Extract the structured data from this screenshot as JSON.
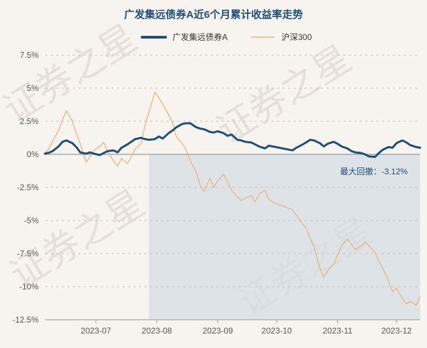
{
  "watermark": "证券之星",
  "chart_data": {
    "type": "line",
    "title": "广发集远债券A近6个月累计收益率走势",
    "xlabel": "",
    "ylabel": "",
    "ylim": [
      -12.5,
      7.5
    ],
    "yticks": [
      7.5,
      5,
      2.5,
      0,
      -2.5,
      -5,
      -7.5,
      -10,
      -12.5
    ],
    "ytick_labels": [
      "7.5%",
      "5%",
      "2.5%",
      "0%",
      "-2.5%",
      "-5%",
      "-7.5%",
      "-10%",
      "-12.5%"
    ],
    "xrange": [
      "2023-06-05",
      "2023-12-13"
    ],
    "xticks": [
      "2023-07-01",
      "2023-08-01",
      "2023-09-01",
      "2023-10-01",
      "2023-11-01",
      "2023-12-01"
    ],
    "xtick_labels": [
      "2023-07",
      "2023-08",
      "2023-09",
      "2023-10",
      "2023-11",
      "2023-12"
    ],
    "grid": "horizontal-dashed",
    "legend_position": "top-center",
    "colors": {
      "fund": "#1f4e79",
      "index": "#f0b27a",
      "drawdown_fill": "#d4dde4",
      "zero_line": "#999999"
    },
    "drawdown": {
      "label": "最大回撤：",
      "value": "-3.12%",
      "start": "2023-07-28",
      "end": "2023-12-13"
    },
    "series": [
      {
        "name": "广发集远债券A",
        "points": [
          [
            "2023-06-05",
            0.05
          ],
          [
            "2023-06-07",
            0.12
          ],
          [
            "2023-06-09",
            0.25
          ],
          [
            "2023-06-12",
            0.6
          ],
          [
            "2023-06-14",
            0.95
          ],
          [
            "2023-06-16",
            1.05
          ],
          [
            "2023-06-19",
            0.85
          ],
          [
            "2023-06-21",
            0.55
          ],
          [
            "2023-06-23",
            0.15
          ],
          [
            "2023-06-26",
            0.05
          ],
          [
            "2023-06-28",
            0.15
          ],
          [
            "2023-06-30",
            0.05
          ],
          [
            "2023-07-03",
            -0.05
          ],
          [
            "2023-07-05",
            0.1
          ],
          [
            "2023-07-07",
            0.25
          ],
          [
            "2023-07-10",
            0.3
          ],
          [
            "2023-07-12",
            0.15
          ],
          [
            "2023-07-14",
            0.5
          ],
          [
            "2023-07-17",
            0.75
          ],
          [
            "2023-07-19",
            0.95
          ],
          [
            "2023-07-21",
            1.15
          ],
          [
            "2023-07-24",
            1.25
          ],
          [
            "2023-07-26",
            1.15
          ],
          [
            "2023-07-28",
            1.1
          ],
          [
            "2023-07-31",
            1.15
          ],
          [
            "2023-08-02",
            1.35
          ],
          [
            "2023-08-04",
            1.2
          ],
          [
            "2023-08-07",
            1.6
          ],
          [
            "2023-08-09",
            1.8
          ],
          [
            "2023-08-11",
            2.05
          ],
          [
            "2023-08-14",
            2.3
          ],
          [
            "2023-08-16",
            2.35
          ],
          [
            "2023-08-18",
            2.35
          ],
          [
            "2023-08-21",
            2.05
          ],
          [
            "2023-08-23",
            1.95
          ],
          [
            "2023-08-25",
            1.9
          ],
          [
            "2023-08-28",
            1.7
          ],
          [
            "2023-08-30",
            1.65
          ],
          [
            "2023-09-01",
            1.75
          ],
          [
            "2023-09-04",
            1.6
          ],
          [
            "2023-09-06",
            1.4
          ],
          [
            "2023-09-08",
            1.5
          ],
          [
            "2023-09-11",
            1.1
          ],
          [
            "2023-09-13",
            1.05
          ],
          [
            "2023-09-15",
            0.95
          ],
          [
            "2023-09-18",
            0.9
          ],
          [
            "2023-09-20",
            0.75
          ],
          [
            "2023-09-22",
            0.6
          ],
          [
            "2023-09-25",
            0.45
          ],
          [
            "2023-09-27",
            0.65
          ],
          [
            "2023-09-29",
            0.6
          ],
          [
            "2023-10-09",
            0.3
          ],
          [
            "2023-10-11",
            0.5
          ],
          [
            "2023-10-13",
            0.65
          ],
          [
            "2023-10-16",
            0.9
          ],
          [
            "2023-10-18",
            1.1
          ],
          [
            "2023-10-20",
            1.05
          ],
          [
            "2023-10-23",
            0.85
          ],
          [
            "2023-10-25",
            0.6
          ],
          [
            "2023-10-27",
            0.8
          ],
          [
            "2023-10-30",
            0.95
          ],
          [
            "2023-11-01",
            0.8
          ],
          [
            "2023-11-03",
            0.6
          ],
          [
            "2023-11-06",
            0.45
          ],
          [
            "2023-11-08",
            0.25
          ],
          [
            "2023-11-10",
            0.15
          ],
          [
            "2023-11-13",
            0.1
          ],
          [
            "2023-11-15",
            0.0
          ],
          [
            "2023-11-17",
            -0.15
          ],
          [
            "2023-11-20",
            -0.2
          ],
          [
            "2023-11-22",
            0.1
          ],
          [
            "2023-11-24",
            0.35
          ],
          [
            "2023-11-27",
            0.55
          ],
          [
            "2023-11-29",
            0.5
          ],
          [
            "2023-12-01",
            0.85
          ],
          [
            "2023-12-04",
            1.05
          ],
          [
            "2023-12-06",
            0.9
          ],
          [
            "2023-12-08",
            0.7
          ],
          [
            "2023-12-11",
            0.55
          ],
          [
            "2023-12-13",
            0.5
          ]
        ]
      },
      {
        "name": "沪深300",
        "points": [
          [
            "2023-06-05",
            0.1
          ],
          [
            "2023-06-07",
            0.4
          ],
          [
            "2023-06-09",
            1.0
          ],
          [
            "2023-06-12",
            1.8
          ],
          [
            "2023-06-14",
            2.6
          ],
          [
            "2023-06-16",
            3.3
          ],
          [
            "2023-06-19",
            2.5
          ],
          [
            "2023-06-21",
            1.6
          ],
          [
            "2023-06-23",
            0.8
          ],
          [
            "2023-06-26",
            -0.6
          ],
          [
            "2023-06-28",
            -0.2
          ],
          [
            "2023-06-30",
            0.3
          ],
          [
            "2023-07-03",
            0.6
          ],
          [
            "2023-07-05",
            0.9
          ],
          [
            "2023-07-07",
            0.2
          ],
          [
            "2023-07-10",
            -0.5
          ],
          [
            "2023-07-12",
            -0.9
          ],
          [
            "2023-07-14",
            -0.3
          ],
          [
            "2023-07-17",
            -0.7
          ],
          [
            "2023-07-19",
            -0.2
          ],
          [
            "2023-07-21",
            0.4
          ],
          [
            "2023-07-24",
            0.8
          ],
          [
            "2023-07-26",
            2.2
          ],
          [
            "2023-07-28",
            3.2
          ],
          [
            "2023-07-31",
            4.7
          ],
          [
            "2023-08-02",
            4.3
          ],
          [
            "2023-08-04",
            3.8
          ],
          [
            "2023-08-07",
            3.0
          ],
          [
            "2023-08-09",
            2.4
          ],
          [
            "2023-08-11",
            1.3
          ],
          [
            "2023-08-14",
            0.8
          ],
          [
            "2023-08-16",
            0.3
          ],
          [
            "2023-08-18",
            -0.5
          ],
          [
            "2023-08-21",
            -1.3
          ],
          [
            "2023-08-23",
            -2.3
          ],
          [
            "2023-08-25",
            -2.8
          ],
          [
            "2023-08-28",
            -1.8
          ],
          [
            "2023-08-30",
            -2.5
          ],
          [
            "2023-09-01",
            -2.0
          ],
          [
            "2023-09-04",
            -1.5
          ],
          [
            "2023-09-06",
            -2.1
          ],
          [
            "2023-09-08",
            -2.7
          ],
          [
            "2023-09-11",
            -3.2
          ],
          [
            "2023-09-13",
            -3.5
          ],
          [
            "2023-09-15",
            -3.3
          ],
          [
            "2023-09-18",
            -3.1
          ],
          [
            "2023-09-20",
            -3.6
          ],
          [
            "2023-09-22",
            -3.0
          ],
          [
            "2023-09-25",
            -2.7
          ],
          [
            "2023-09-27",
            -3.4
          ],
          [
            "2023-09-29",
            -3.6
          ],
          [
            "2023-10-09",
            -4.2
          ],
          [
            "2023-10-11",
            -4.6
          ],
          [
            "2023-10-13",
            -5.0
          ],
          [
            "2023-10-16",
            -5.6
          ],
          [
            "2023-10-18",
            -6.3
          ],
          [
            "2023-10-20",
            -7.0
          ],
          [
            "2023-10-23",
            -8.6
          ],
          [
            "2023-10-25",
            -9.3
          ],
          [
            "2023-10-27",
            -8.8
          ],
          [
            "2023-10-30",
            -8.3
          ],
          [
            "2023-11-01",
            -7.6
          ],
          [
            "2023-11-03",
            -6.9
          ],
          [
            "2023-11-06",
            -6.4
          ],
          [
            "2023-11-08",
            -6.8
          ],
          [
            "2023-11-10",
            -7.2
          ],
          [
            "2023-11-13",
            -6.9
          ],
          [
            "2023-11-15",
            -6.6
          ],
          [
            "2023-11-17",
            -6.9
          ],
          [
            "2023-11-20",
            -7.4
          ],
          [
            "2023-11-22",
            -8.1
          ],
          [
            "2023-11-24",
            -8.6
          ],
          [
            "2023-11-27",
            -9.6
          ],
          [
            "2023-11-29",
            -10.4
          ],
          [
            "2023-12-01",
            -10.1
          ],
          [
            "2023-12-04",
            -10.9
          ],
          [
            "2023-12-06",
            -11.3
          ],
          [
            "2023-12-08",
            -11.1
          ],
          [
            "2023-12-11",
            -11.4
          ],
          [
            "2023-12-13",
            -10.7
          ]
        ]
      }
    ]
  }
}
